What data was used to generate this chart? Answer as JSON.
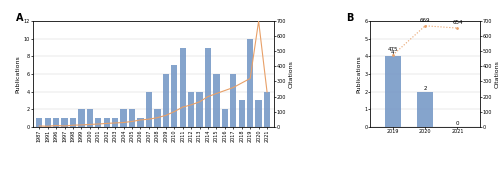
{
  "panel_A": {
    "years": [
      1987,
      1991,
      1996,
      1997,
      1998,
      1999,
      2000,
      2001,
      2002,
      2003,
      2004,
      2005,
      2006,
      2007,
      2008,
      2009,
      2010,
      2011,
      2012,
      2013,
      2014,
      2015,
      2016,
      2017,
      2018,
      2019,
      2020,
      2021
    ],
    "publications": [
      1,
      1,
      1,
      1,
      1,
      2,
      2,
      1,
      1,
      1,
      2,
      2,
      1,
      4,
      2,
      6,
      7,
      9,
      4,
      4,
      9,
      6,
      2,
      6,
      3,
      10,
      3,
      4
    ],
    "citations": [
      5,
      3,
      8,
      5,
      10,
      12,
      15,
      18,
      22,
      25,
      28,
      35,
      45,
      50,
      60,
      75,
      100,
      130,
      145,
      165,
      200,
      220,
      240,
      260,
      290,
      320,
      700,
      230
    ],
    "pub_color": "#7094c4",
    "cite_color": "#e8a068",
    "ylabel_left": "Publications",
    "ylabel_right": "Citations",
    "ylim_left": [
      0,
      12
    ],
    "ylim_right": [
      0,
      700
    ],
    "yticks_left": [
      0,
      2,
      4,
      6,
      8,
      10,
      12
    ],
    "yticks_right": [
      0,
      100,
      200,
      300,
      400,
      500,
      600,
      700
    ]
  },
  "panel_B": {
    "years": [
      "2019",
      "2020",
      "2021"
    ],
    "publications": [
      4,
      2,
      0
    ],
    "citations": [
      475,
      669,
      654
    ],
    "pub_color": "#7094c4",
    "cite_color": "#e8a068",
    "ylabel_left": "Publications",
    "ylabel_right": "Citations",
    "ylim_left": [
      0,
      6
    ],
    "ylim_right": [
      0,
      700
    ],
    "yticks_left": [
      0,
      1,
      2,
      3,
      4,
      5,
      6
    ],
    "yticks_right": [
      0,
      100,
      200,
      300,
      400,
      500,
      600,
      700
    ],
    "cite_labels": [
      "475",
      "669",
      "654"
    ],
    "pub_labels": [
      "4",
      "2",
      "0"
    ],
    "cite_label_offsets": [
      [
        0,
        18
      ],
      [
        0,
        18
      ],
      [
        0,
        18
      ]
    ]
  },
  "legend_pub": "Publications",
  "legend_cite": "Citations",
  "label_A": "A",
  "label_B": "B",
  "tick_fontsize": 3.5,
  "label_fontsize": 4.5,
  "legend_fontsize": 3.5,
  "annotation_fontsize": 4,
  "title_fontsize": 7
}
